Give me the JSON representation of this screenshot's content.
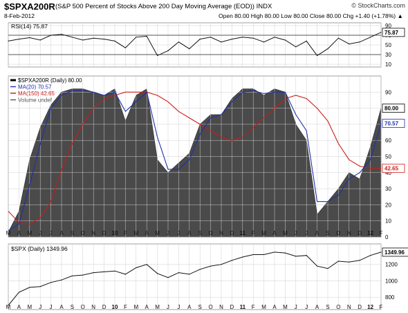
{
  "header": {
    "symbol": "$SPXA200R",
    "description": "(S&P 500 Percent of Stocks Above 200 Day Moving Average (EOD)) INDX",
    "date": "8-Feb-2012",
    "ohlc": "Open 80.00  High 80.00  Low 80.00  Close 80.00  Chg +1.40 (+1.78%) ▲",
    "brand": "© StockCharts.com"
  },
  "colors": {
    "area_fill": "#4a4a4a",
    "ma20": "#1f2fa8",
    "ma150": "#cc1b1b",
    "rsi_line": "#111111",
    "spx_line": "#111111",
    "grid": "#cfcfcf",
    "label_box_fill": "#ffffff"
  },
  "chart_data": [
    {
      "type": "line",
      "panel": "rsi",
      "legend": "RSI(14) 75.87",
      "current_label": "75.87",
      "ylim": [
        10,
        90
      ],
      "ticks": [
        "90",
        "70",
        "50",
        "30",
        "10"
      ],
      "reference_lines": [
        70,
        30
      ],
      "x": [
        "2009-03",
        "2009-04",
        "2009-05",
        "2009-06",
        "2009-07",
        "2009-08",
        "2009-09",
        "2009-10",
        "2009-11",
        "2009-12",
        "2010-01",
        "2010-02",
        "2010-03",
        "2010-04",
        "2010-05",
        "2010-06",
        "2010-07",
        "2010-08",
        "2010-09",
        "2010-10",
        "2010-11",
        "2010-12",
        "2011-01",
        "2011-02",
        "2011-03",
        "2011-04",
        "2011-05",
        "2011-06",
        "2011-07",
        "2011-08",
        "2011-09",
        "2011-10",
        "2011-11",
        "2011-12",
        "2012-01",
        "2012-02"
      ],
      "values": [
        58,
        62,
        65,
        60,
        70,
        72,
        66,
        60,
        64,
        62,
        58,
        44,
        66,
        68,
        28,
        38,
        56,
        42,
        62,
        66,
        56,
        62,
        66,
        64,
        56,
        66,
        60,
        46,
        58,
        28,
        42,
        64,
        52,
        56,
        66,
        76
      ]
    },
    {
      "type": "area",
      "panel": "main",
      "legend": [
        "$SPXA200R (Daily) 80.00",
        "MA(20) 70.57",
        "MA(150) 42.65",
        "Volume undef"
      ],
      "ylim": [
        0,
        100
      ],
      "ticks": [
        "90",
        "80",
        "70",
        "60",
        "50",
        "40",
        "30",
        "20",
        "10",
        "0"
      ],
      "value_labels": [
        "80.00",
        "70.57",
        "42.65"
      ],
      "x_labels": [
        "M",
        "A",
        "M",
        "J",
        "J",
        "A",
        "S",
        "O",
        "N",
        "D",
        "10",
        "F",
        "M",
        "A",
        "M",
        "J",
        "J",
        "A",
        "S",
        "O",
        "N",
        "D",
        "11",
        "F",
        "M",
        "A",
        "M",
        "J",
        "J",
        "A",
        "S",
        "O",
        "N",
        "D",
        "12",
        "F"
      ],
      "x": [
        "2009-03",
        "2009-04",
        "2009-05",
        "2009-06",
        "2009-07",
        "2009-08",
        "2009-09",
        "2009-10",
        "2009-11",
        "2009-12",
        "2010-01",
        "2010-02",
        "2010-03",
        "2010-04",
        "2010-05",
        "2010-06",
        "2010-07",
        "2010-08",
        "2010-09",
        "2010-10",
        "2010-11",
        "2010-12",
        "2011-01",
        "2011-02",
        "2011-03",
        "2011-04",
        "2011-05",
        "2011-06",
        "2011-07",
        "2011-08",
        "2011-09",
        "2011-10",
        "2011-11",
        "2011-12",
        "2012-01",
        "2012-02"
      ],
      "series": [
        {
          "name": "$SPXA200R (Daily) 80.00",
          "values": [
            3,
            16,
            48,
            68,
            82,
            90,
            92,
            92,
            90,
            88,
            92,
            72,
            88,
            92,
            48,
            40,
            46,
            52,
            70,
            76,
            76,
            86,
            92,
            92,
            88,
            92,
            90,
            70,
            60,
            14,
            22,
            30,
            40,
            36,
            56,
            80
          ]
        },
        {
          "name": "MA(20) 70.57",
          "values": [
            4,
            8,
            32,
            58,
            80,
            88,
            91,
            91,
            90,
            88,
            90,
            78,
            84,
            90,
            62,
            42,
            42,
            48,
            64,
            74,
            76,
            84,
            90,
            91,
            89,
            90,
            90,
            76,
            66,
            22,
            22,
            26,
            36,
            40,
            48,
            70.57
          ]
        },
        {
          "name": "MA(150) 42.65",
          "values": [
            16,
            9,
            8,
            12,
            22,
            42,
            58,
            70,
            80,
            86,
            88,
            90,
            90,
            90,
            88,
            84,
            78,
            74,
            70,
            66,
            62,
            60,
            62,
            68,
            74,
            80,
            86,
            88,
            86,
            80,
            72,
            58,
            48,
            44,
            42.65,
            42.65
          ]
        }
      ]
    },
    {
      "type": "line",
      "panel": "spx",
      "legend": "$SPX (Daily) 1349.96",
      "current_label": "1349.96",
      "ylim": [
        700,
        1400
      ],
      "ticks": [
        "1200",
        "1000",
        "800"
      ],
      "x_labels": [
        "M",
        "A",
        "M",
        "J",
        "J",
        "A",
        "S",
        "O",
        "N",
        "D",
        "10",
        "F",
        "M",
        "A",
        "M",
        "J",
        "J",
        "A",
        "S",
        "O",
        "N",
        "D",
        "11",
        "F",
        "M",
        "A",
        "M",
        "J",
        "J",
        "A",
        "S",
        "O",
        "N",
        "D",
        "12",
        "F"
      ],
      "x": [
        "2009-03",
        "2009-04",
        "2009-05",
        "2009-06",
        "2009-07",
        "2009-08",
        "2009-09",
        "2009-10",
        "2009-11",
        "2009-12",
        "2010-01",
        "2010-02",
        "2010-03",
        "2010-04",
        "2010-05",
        "2010-06",
        "2010-07",
        "2010-08",
        "2010-09",
        "2010-10",
        "2010-11",
        "2010-12",
        "2011-01",
        "2011-02",
        "2011-03",
        "2011-04",
        "2011-05",
        "2011-06",
        "2011-07",
        "2011-08",
        "2011-09",
        "2011-10",
        "2011-11",
        "2011-12",
        "2012-01",
        "2012-02"
      ],
      "values": [
        700,
        860,
        920,
        930,
        980,
        1010,
        1060,
        1070,
        1100,
        1110,
        1120,
        1080,
        1160,
        1200,
        1090,
        1040,
        1100,
        1080,
        1140,
        1180,
        1200,
        1250,
        1290,
        1320,
        1320,
        1350,
        1340,
        1300,
        1310,
        1180,
        1150,
        1240,
        1230,
        1250,
        1310,
        1350
      ]
    }
  ]
}
